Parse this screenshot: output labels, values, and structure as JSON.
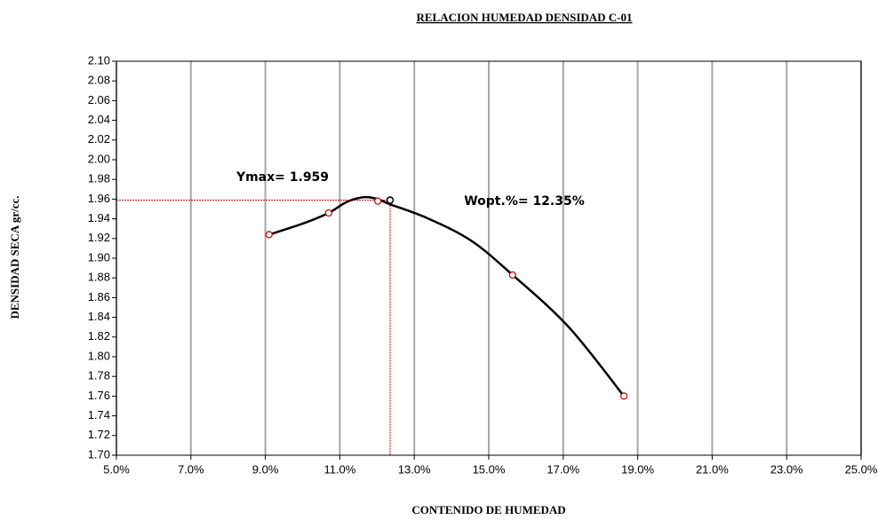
{
  "chart_data": {
    "type": "line",
    "title": "RELACION HUMEDAD DENSIDAD C-01",
    "x_label": "CONTENIDO DE HUMEDAD",
    "y_label": "DENSIDAD SECA gr/cc.",
    "xlim": [
      5,
      25
    ],
    "xticks": [
      {
        "value": 5,
        "label": "5.0%"
      },
      {
        "value": 7,
        "label": "7.0%"
      },
      {
        "value": 9,
        "label": "9.0%"
      },
      {
        "value": 11,
        "label": "11.0%"
      },
      {
        "value": 13,
        "label": "13.0%"
      },
      {
        "value": 15,
        "label": "15.0%"
      },
      {
        "value": 17,
        "label": "17.0%"
      },
      {
        "value": 19,
        "label": "19.0%"
      },
      {
        "value": 21,
        "label": "21.0%"
      },
      {
        "value": 23,
        "label": "23.0%"
      },
      {
        "value": 25,
        "label": "25.0%"
      }
    ],
    "ylim": [
      1.7,
      2.1
    ],
    "yticks": [
      {
        "value": 1.7,
        "label": "1.70"
      },
      1.72,
      1.74,
      1.76,
      1.78,
      {
        "value": 1.8,
        "label": "1.80"
      },
      1.82,
      1.84,
      1.86,
      1.88,
      {
        "value": 1.9,
        "label": "1.90"
      },
      1.92,
      1.94,
      1.96,
      1.98,
      {
        "value": 2.0,
        "label": "2.00"
      },
      2.02,
      2.04,
      2.06,
      2.08,
      {
        "value": 2.1,
        "label": "2.10"
      }
    ],
    "grid": true,
    "grid_color": "#a6a6a6",
    "points": {
      "color": "#c00000",
      "x": [
        9.1,
        10.7,
        12.02,
        15.64,
        18.63
      ],
      "y": [
        1.924,
        1.946,
        1.958,
        1.883,
        1.76
      ]
    },
    "curve": {
      "color": "#000000",
      "x": [
        9.1,
        9.99,
        10.7,
        11.18,
        11.66,
        12.02,
        12.33,
        13.33,
        14.52,
        15.64,
        17.15,
        18.63
      ],
      "y": [
        1.924,
        1.935,
        1.946,
        1.957,
        1.962,
        1.96,
        1.955,
        1.941,
        1.918,
        1.883,
        1.83,
        1.76
      ]
    },
    "optimum": {
      "x": 12.35,
      "y": 1.959,
      "color": "#e00000"
    },
    "annotations": {
      "ymax": "Ymax= 1.959",
      "wopt": "Wopt.%= 12.35%",
      "color": "#2424d8"
    }
  }
}
